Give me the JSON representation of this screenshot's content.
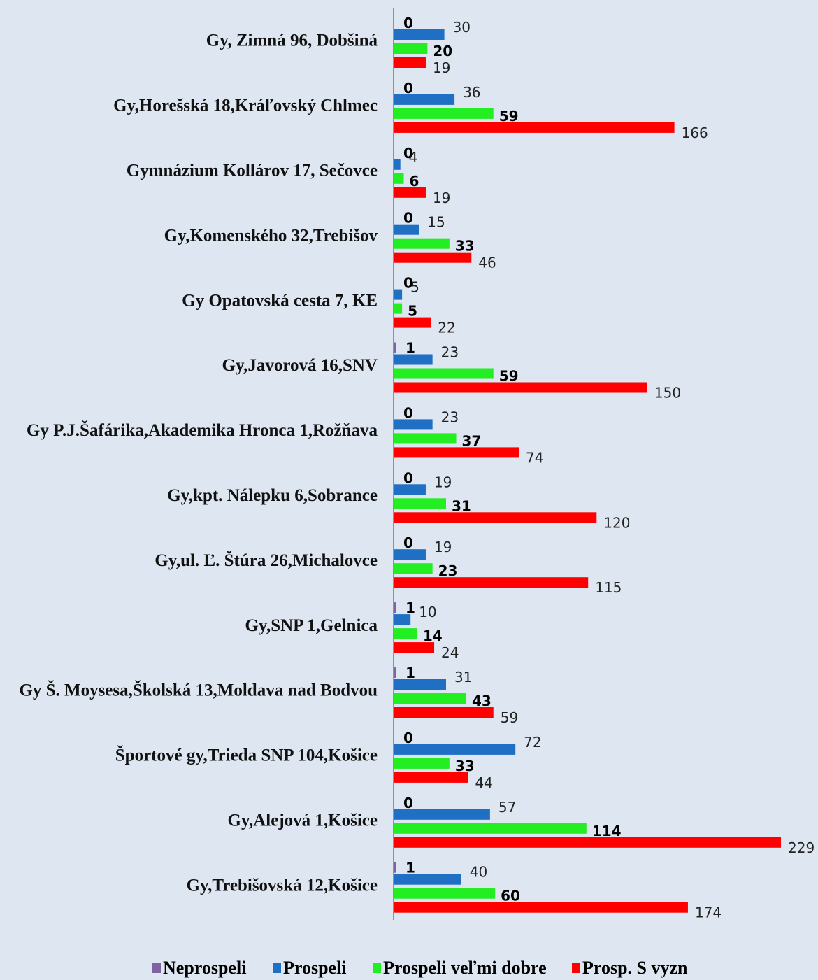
{
  "chart_data": {
    "type": "hbar",
    "categories": [
      "Gy, Zimná 96,  Dobšiná",
      "Gy,Horešská 18,Kráľovský Chlmec",
      "Gymnázium Kollárov 17, Sečovce",
      "Gy,Komenského 32,Trebišov",
      "Gy Opatovská cesta 7, KE",
      "Gy,Javorová 16,SNV",
      "Gy P.J.Šafárika,Akademika Hronca 1,Rožňava",
      "Gy,kpt. Nálepku 6,Sobrance",
      "Gy,ul. Ľ. Štúra 26,Michalovce",
      "Gy,SNP 1,Gelnica",
      "Gy Š.  Moysesa,Školská 13,Moldava nad Bodvou",
      "Športové gy,Trieda SNP 104,Košice",
      "Gy,Alejová 1,Košice",
      "Gy,Trebišovská 12,Košice"
    ],
    "series": [
      {
        "name": "Neprospeli",
        "color": "#8064a2",
        "values": [
          0,
          0,
          0,
          0,
          0,
          1,
          0,
          0,
          0,
          1,
          1,
          0,
          0,
          1
        ]
      },
      {
        "name": "Prospeli",
        "color": "#1f6fc5",
        "values": [
          30,
          36,
          4,
          15,
          5,
          23,
          23,
          19,
          19,
          10,
          31,
          72,
          57,
          40
        ]
      },
      {
        "name": "Prospeli veľmi dobre",
        "color": "#22ee22",
        "values": [
          20,
          59,
          6,
          33,
          5,
          59,
          37,
          31,
          23,
          14,
          43,
          33,
          114,
          60
        ]
      },
      {
        "name": "Prosp. S vyzn",
        "color": "#ff0000",
        "values": [
          19,
          166,
          19,
          46,
          22,
          150,
          74,
          120,
          115,
          24,
          59,
          44,
          229,
          174
        ]
      }
    ],
    "legend": "bottom"
  }
}
